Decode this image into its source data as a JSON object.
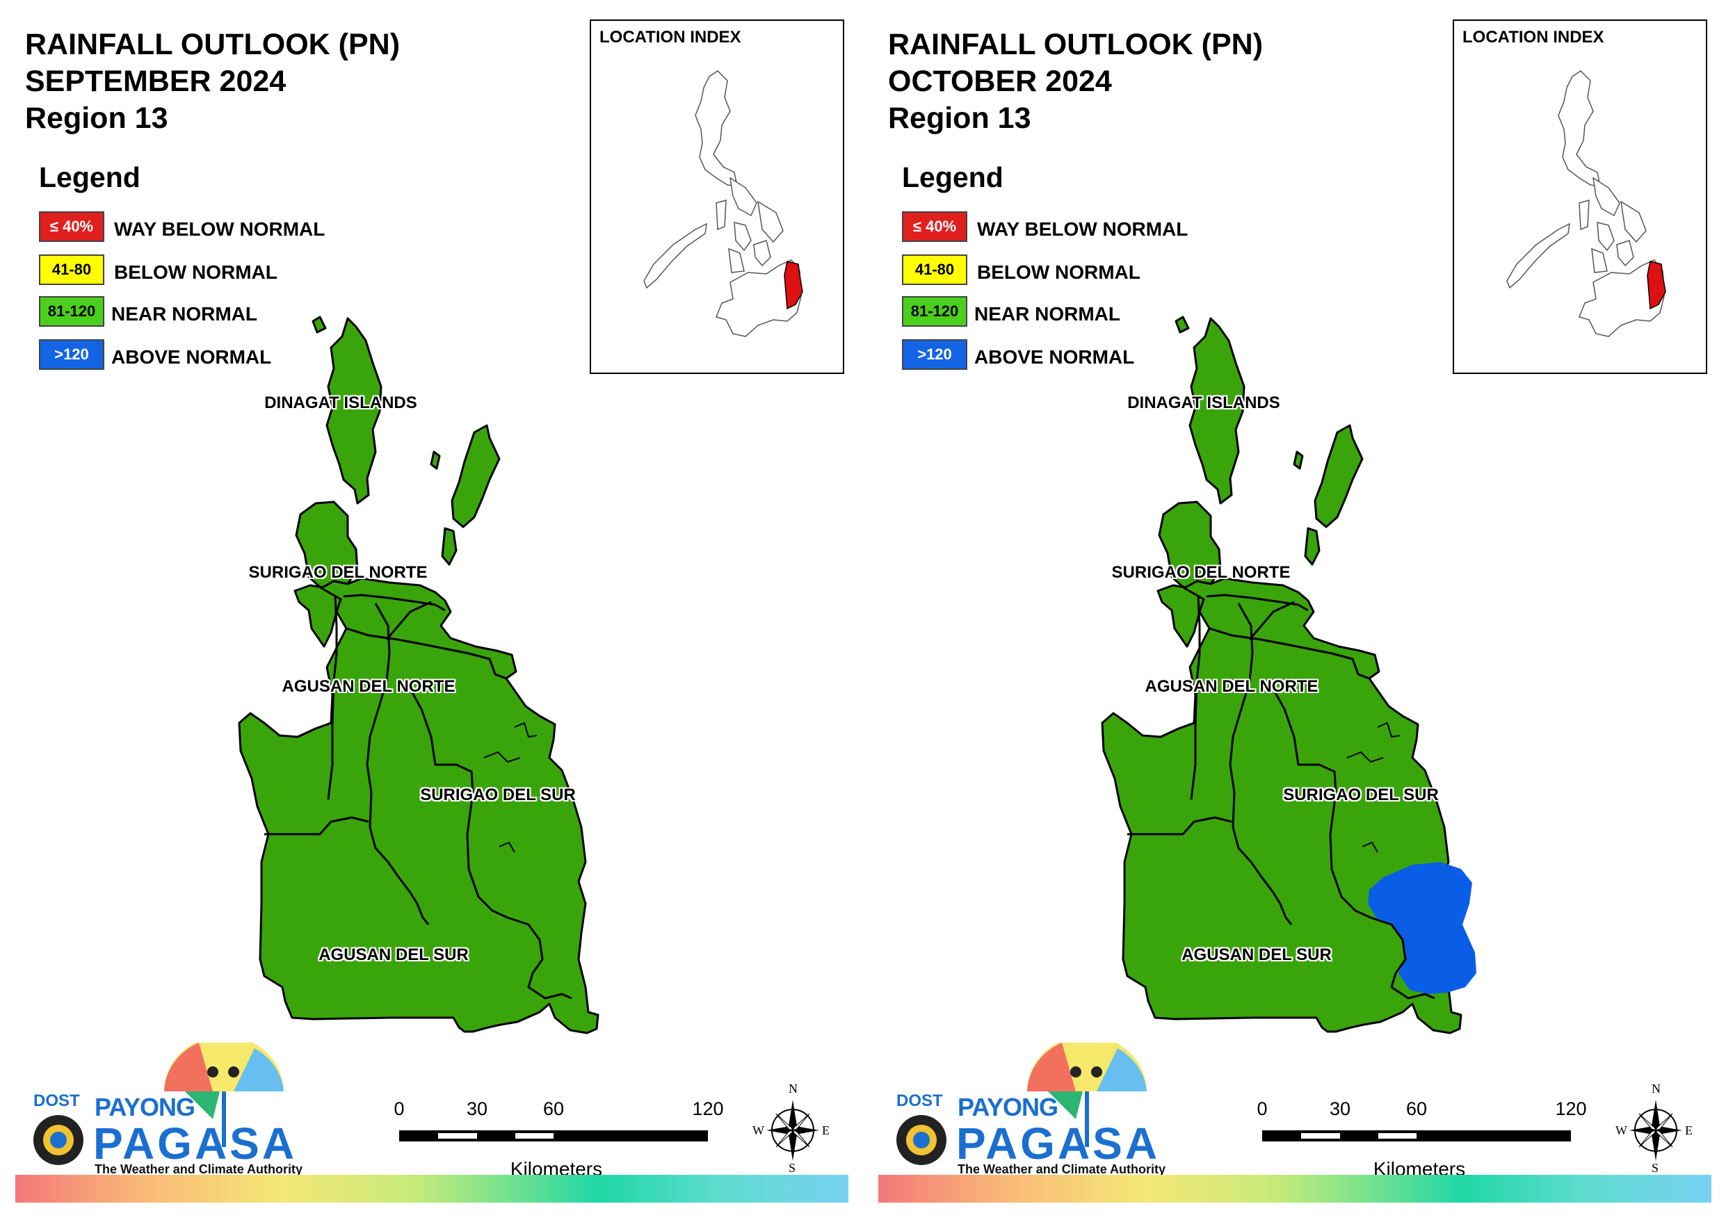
{
  "panels": [
    {
      "title_line1": "RAINFALL OUTLOOK (PN)",
      "title_line2": "SEPTEMBER 2024",
      "title_line3": "Region 13",
      "legend": {
        "heading": "Legend",
        "items": [
          {
            "swatch": "≤ 40%",
            "label": "WAY BELOW NORMAL",
            "color": "#e11f1f",
            "text_color": "#ffffff"
          },
          {
            "swatch": "41-80",
            "label": "BELOW NORMAL",
            "color": "#ffff00",
            "text_color": "#000000"
          },
          {
            "swatch": "81-120",
            "label": "NEAR NORMAL",
            "color": "#4bcf1e",
            "text_color": "#000000"
          },
          {
            "swatch": ">120",
            "label": "ABOVE NORMAL",
            "color": "#1464e6",
            "text_color": "#ffffff"
          }
        ]
      },
      "location_index": {
        "title": "LOCATION INDEX",
        "highlight_color": "#dd1111"
      },
      "provinces": {
        "dinagat": "DINAGAT ISLANDS",
        "sdn": "SURIGAO DEL NORTE",
        "adn": "AGUSAN DEL NORTE",
        "sds": "SURIGAO DEL SUR",
        "ads": "AGUSAN DEL SUR"
      },
      "category_colors": {
        "near_normal": "#3aa50a",
        "above_normal": "#0a5ee6"
      },
      "above_normal_area": false,
      "scale": {
        "ticks": [
          "0",
          "30",
          "60",
          "120"
        ],
        "unit": "Kilometers"
      },
      "compass": {
        "n": "N",
        "s": "S",
        "e": "E",
        "w": "W"
      },
      "logo": {
        "dost": "DOST",
        "payong": "PAYONG",
        "pagasa": "PAGASA",
        "tagline": "The Weather and Climate Authority"
      }
    },
    {
      "title_line1": "RAINFALL OUTLOOK (PN)",
      "title_line2": "OCTOBER 2024",
      "title_line3": "Region 13",
      "legend": {
        "heading": "Legend",
        "items": [
          {
            "swatch": "≤ 40%",
            "label": "WAY BELOW NORMAL",
            "color": "#e11f1f",
            "text_color": "#ffffff"
          },
          {
            "swatch": "41-80",
            "label": "BELOW NORMAL",
            "color": "#ffff00",
            "text_color": "#000000"
          },
          {
            "swatch": "81-120",
            "label": "NEAR NORMAL",
            "color": "#4bcf1e",
            "text_color": "#000000"
          },
          {
            "swatch": ">120",
            "label": "ABOVE NORMAL",
            "color": "#1464e6",
            "text_color": "#ffffff"
          }
        ]
      },
      "location_index": {
        "title": "LOCATION INDEX",
        "highlight_color": "#dd1111"
      },
      "provinces": {
        "dinagat": "DINAGAT ISLANDS",
        "sdn": "SURIGAO DEL NORTE",
        "adn": "AGUSAN DEL NORTE",
        "sds": "SURIGAO DEL SUR",
        "ads": "AGUSAN DEL SUR"
      },
      "category_colors": {
        "near_normal": "#3aa50a",
        "above_normal": "#0a5ee6"
      },
      "above_normal_area": true,
      "scale": {
        "ticks": [
          "0",
          "30",
          "60",
          "120"
        ],
        "unit": "Kilometers"
      },
      "compass": {
        "n": "N",
        "s": "S",
        "e": "E",
        "w": "W"
      },
      "logo": {
        "dost": "DOST",
        "payong": "PAYONG",
        "pagasa": "PAGASA",
        "tagline": "The Weather and Climate Authority"
      }
    }
  ]
}
